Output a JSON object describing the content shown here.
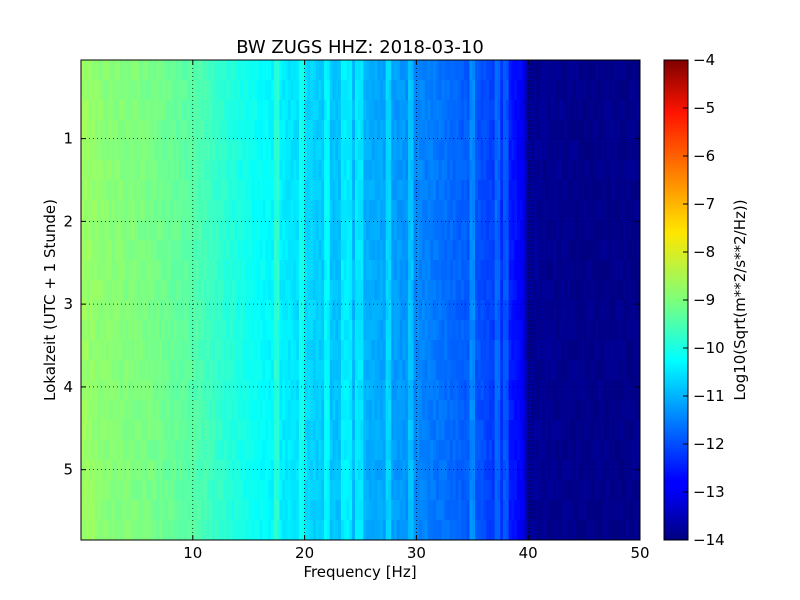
{
  "chart_data": {
    "type": "heatmap",
    "title": "BW ZUGS HHZ: 2018-03-10",
    "xlabel": "Frequency [Hz]",
    "ylabel": "Lokalzeit (UTC + 1 Stunde)",
    "xlim": [
      0,
      50
    ],
    "ylim": [
      5.85,
      0.05
    ],
    "y_inverted": true,
    "x_ticks": [
      10,
      20,
      30,
      40,
      50
    ],
    "x_tick_labels": [
      "10",
      "20",
      "30",
      "40",
      "50"
    ],
    "y_ticks": [
      1,
      2,
      3,
      4,
      5
    ],
    "y_tick_labels": [
      "1",
      "2",
      "3",
      "4",
      "5"
    ],
    "grid": true,
    "colorscale": "jet",
    "colorbar": {
      "label": "Log10(Sqrt(m**2/s**2/Hz))",
      "range": [
        -14,
        -4
      ],
      "ticks": [
        -4,
        -5,
        -6,
        -7,
        -8,
        -9,
        -10,
        -11,
        -12,
        -13,
        -14
      ],
      "tick_labels": [
        "−4",
        "−5",
        "−6",
        "−7",
        "−8",
        "−9",
        "−10",
        "−11",
        "−12",
        "−13",
        "−14"
      ]
    },
    "frequency_profile": {
      "frequency_hz": [
        0,
        2,
        5,
        8,
        10,
        12,
        15,
        18,
        20,
        22,
        25,
        28,
        30,
        32,
        34,
        36,
        38,
        39.5,
        40,
        45,
        50
      ],
      "log10_psd": [
        -8.7,
        -8.9,
        -9.0,
        -9.2,
        -9.4,
        -9.7,
        -10.1,
        -10.4,
        -10.6,
        -10.8,
        -11.0,
        -11.2,
        -11.4,
        -11.6,
        -11.8,
        -12.0,
        -12.4,
        -12.8,
        -13.8,
        -13.9,
        -13.9
      ]
    },
    "spectral_lines_hz": [
      17.5,
      19.8,
      22.0,
      23.5,
      24.0,
      24.6,
      25.0,
      27.5,
      29.5,
      35.0,
      37.3,
      38.0
    ]
  }
}
